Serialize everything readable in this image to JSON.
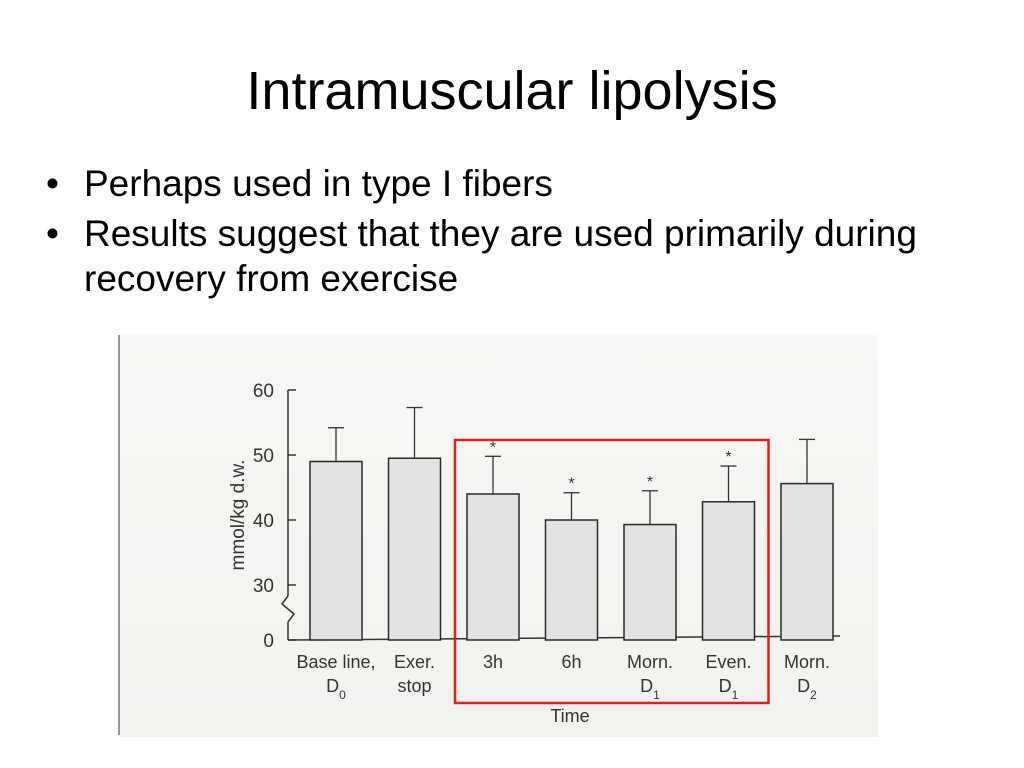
{
  "slide": {
    "title": "Intramuscular lipolysis",
    "bullets": [
      "Perhaps used in type I fibers",
      "Results suggest that they are used primarily during recovery from exercise"
    ]
  },
  "colors": {
    "bar_fill": "#e3e3e3",
    "bar_stroke": "#2a2a2a",
    "highlight_box": "#e02020"
  },
  "chart_data": {
    "type": "bar",
    "xlabel": "Time",
    "ylabel": "mmol/kg d.w.",
    "ylim": [
      30,
      60
    ],
    "axis_break": true,
    "yticks": [
      0,
      30,
      40,
      50,
      60
    ],
    "categories": [
      {
        "line1": "Base line,",
        "line2": "D",
        "sub2": "0"
      },
      {
        "line1": "Exer.",
        "line2": "stop",
        "sub2": ""
      },
      {
        "line1": "3h",
        "line2": "",
        "sub2": ""
      },
      {
        "line1": "6h",
        "line2": "",
        "sub2": ""
      },
      {
        "line1": "Morn.",
        "line2": "D",
        "sub2": "1"
      },
      {
        "line1": "Even.",
        "line2": "D",
        "sub2": "1"
      },
      {
        "line1": "Morn.",
        "line2": "D",
        "sub2": "2"
      }
    ],
    "values": [
      49,
      49.5,
      44,
      40,
      39.3,
      42.8,
      45.6
    ],
    "error_upper": [
      54.2,
      57.3,
      49.8,
      44.2,
      44.5,
      48.3,
      52.4
    ],
    "significance": [
      "",
      "",
      "*",
      "*",
      "*",
      "*",
      ""
    ],
    "highlight": {
      "from_category": 2,
      "to_category": 5
    },
    "grid": false,
    "legend": "none"
  }
}
